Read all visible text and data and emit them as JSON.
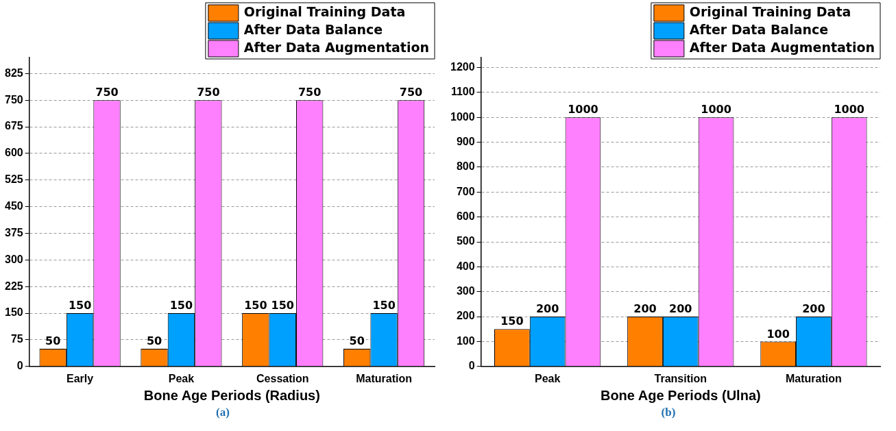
{
  "chart_data": [
    {
      "type": "bar",
      "xlabel": "Bone Age Periods (Radius)",
      "categories": [
        "Early",
        "Peak",
        "Cessation",
        "Maturation"
      ],
      "series": [
        {
          "name": "Original Training Data",
          "color": "#ff7f00",
          "values": [
            50,
            50,
            150,
            50
          ]
        },
        {
          "name": "After Data Balance",
          "color": "#00a0ff",
          "values": [
            150,
            150,
            150,
            150
          ]
        },
        {
          "name": "After Data Augmentation",
          "color": "#ff80ff",
          "values": [
            750,
            750,
            750,
            750
          ]
        }
      ],
      "ylim": [
        0,
        870
      ],
      "yticks": [
        0,
        75,
        150,
        225,
        300,
        375,
        450,
        525,
        600,
        675,
        750,
        825
      ],
      "grid": "y",
      "legend": "top right",
      "data_labels": true,
      "annotations": [
        "(a)"
      ]
    },
    {
      "type": "bar",
      "xlabel": "Bone Age Periods (Ulna)",
      "categories": [
        "Peak",
        "Transition",
        "Maturation"
      ],
      "series": [
        {
          "name": "Original Training Data",
          "color": "#ff7f00",
          "values": [
            150,
            200,
            100
          ]
        },
        {
          "name": "After Data Balance",
          "color": "#00a0ff",
          "values": [
            200,
            200,
            200
          ]
        },
        {
          "name": "After Data Augmentation",
          "color": "#ff80ff",
          "values": [
            1000,
            1000,
            1000
          ]
        }
      ],
      "ylim": [
        0,
        1240
      ],
      "yticks": [
        0,
        100,
        200,
        300,
        400,
        500,
        600,
        700,
        800,
        900,
        1000,
        1100,
        1200
      ],
      "grid": "y",
      "legend": "top right",
      "data_labels": true,
      "annotations": [
        "(b)"
      ]
    }
  ]
}
